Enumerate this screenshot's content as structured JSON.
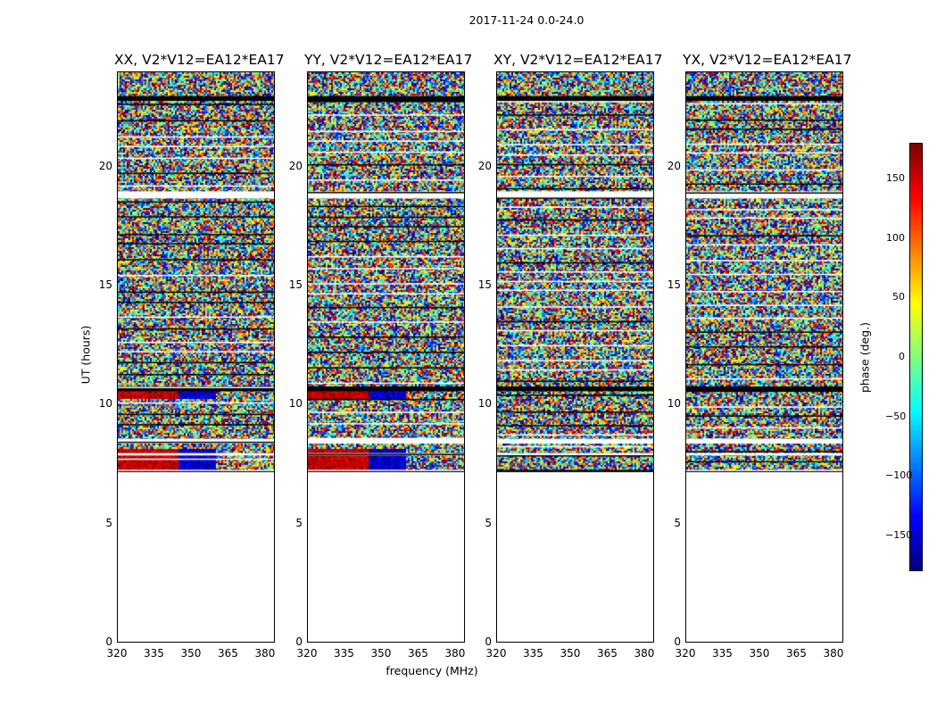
{
  "chart_data": {
    "type": "heatmap",
    "suptitle": "2017-11-24 0.0-24.0",
    "panels": [
      {
        "title": "XX, V2*V12=EA12*EA17",
        "low_band": "red-blue"
      },
      {
        "title": "YY, V2*V12=EA12*EA17",
        "low_band": "red-blue"
      },
      {
        "title": "XY, V2*V12=EA12*EA17",
        "low_band": "noise"
      },
      {
        "title": "YX, V2*V12=EA12*EA17",
        "low_band": "noise"
      }
    ],
    "xlabel": "frequency (MHz)",
    "ylabel": "UT (hours)",
    "xticks": [
      "320",
      "335",
      "350",
      "365",
      "380"
    ],
    "xtick_values": [
      320,
      335,
      350,
      365,
      380
    ],
    "yticks": [
      "0",
      "5",
      "10",
      "15",
      "20"
    ],
    "ytick_values": [
      0,
      5,
      10,
      15,
      20
    ],
    "xlim": [
      320,
      384
    ],
    "ylim": [
      0,
      24
    ],
    "data_start_hour": 7.2,
    "data_end_hour": 24.0,
    "colorbar": {
      "label": "phase (deg.)",
      "ticks": [
        "150",
        "100",
        "50",
        "0",
        "−50",
        "−100",
        "−150"
      ],
      "tick_values": [
        150,
        100,
        50,
        0,
        -50,
        -100,
        -150
      ],
      "range": [
        -180,
        180
      ],
      "colormap": "jet"
    }
  }
}
